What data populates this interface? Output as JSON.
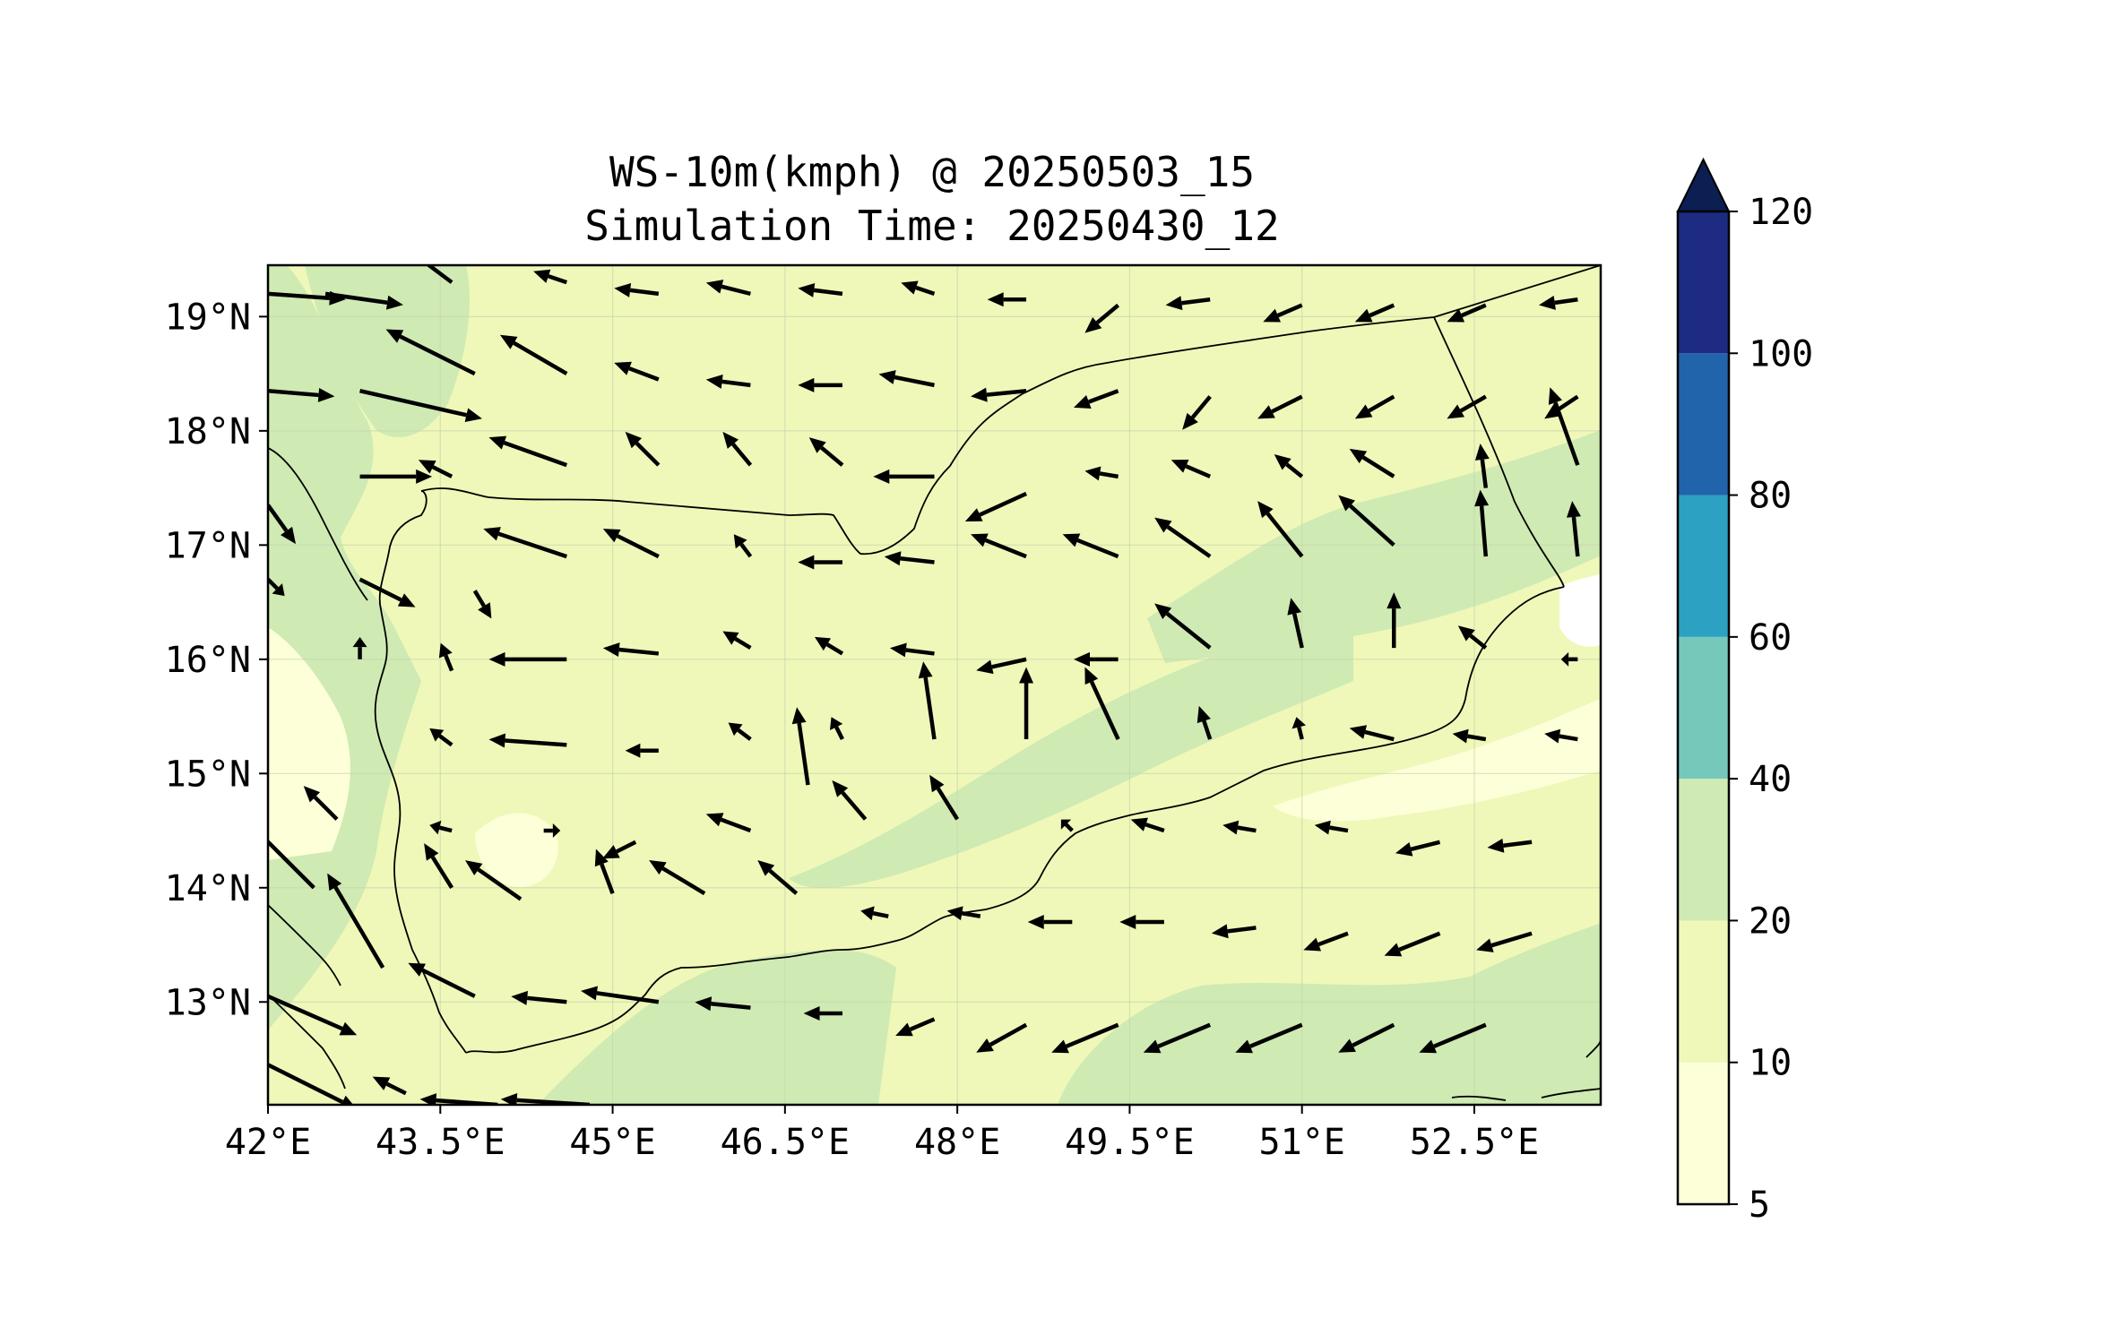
{
  "title": {
    "line1": "WS-10m(kmph) @ 20250503_15",
    "line2": "Simulation Time: 20250430_12"
  },
  "map": {
    "lon_range": [
      42.0,
      53.6
    ],
    "lat_range": [
      12.1,
      19.45
    ],
    "lon_ticks": [
      42,
      43.5,
      45,
      46.5,
      48,
      49.5,
      51,
      52.5
    ],
    "lon_tick_labels": [
      "42°E",
      "43.5°E",
      "45°E",
      "46.5°E",
      "48°E",
      "49.5°E",
      "51°E",
      "52.5°E"
    ],
    "lat_ticks": [
      13,
      14,
      15,
      16,
      17,
      18,
      19
    ],
    "lat_tick_labels": [
      "13°N",
      "14°N",
      "15°N",
      "16°N",
      "17°N",
      "18°N",
      "19°N"
    ],
    "grid": true
  },
  "colorbar": {
    "levels": [
      5,
      10,
      20,
      40,
      60,
      80,
      100,
      120
    ],
    "level_labels": [
      "5",
      "10",
      "20",
      "40",
      "60",
      "80",
      "100",
      "120"
    ],
    "colors": [
      "#fdffd9",
      "#eff8b8",
      "#cfeab3",
      "#76c8bb",
      "#2ca1c2",
      "#2164ab",
      "#1d2c82"
    ],
    "extend_color": "#0c1f52",
    "extend": "max"
  },
  "colors": {
    "land_lowwind": "#eff8b8",
    "land_midwind": "#cfeab3",
    "calm": "#fdffd9",
    "sea_white": "#ffffff",
    "arrow": "#000000"
  },
  "chart_data": {
    "type": "quiver_map",
    "variable": "WS-10m(kmph)",
    "valid_time": "20250503_15",
    "init_time": "20250430_12",
    "vectors": [
      {
        "lon": 42.0,
        "lat": 19.2,
        "u": 14,
        "v": -1
      },
      {
        "lon": 42.5,
        "lat": 19.2,
        "u": 14,
        "v": -2
      },
      {
        "lon": 43.6,
        "lat": 19.3,
        "u": -8,
        "v": 6
      },
      {
        "lon": 44.6,
        "lat": 19.3,
        "u": -6,
        "v": 2
      },
      {
        "lon": 45.4,
        "lat": 19.2,
        "u": -8,
        "v": 1
      },
      {
        "lon": 46.2,
        "lat": 19.2,
        "u": -8,
        "v": 2
      },
      {
        "lon": 47.0,
        "lat": 19.2,
        "u": -8,
        "v": 1
      },
      {
        "lon": 47.8,
        "lat": 19.2,
        "u": -6,
        "v": 2
      },
      {
        "lon": 48.6,
        "lat": 19.15,
        "u": -7,
        "v": 0
      },
      {
        "lon": 49.4,
        "lat": 19.1,
        "u": -6,
        "v": -5
      },
      {
        "lon": 50.2,
        "lat": 19.15,
        "u": -8,
        "v": -1
      },
      {
        "lon": 51.0,
        "lat": 19.1,
        "u": -7,
        "v": -3
      },
      {
        "lon": 51.8,
        "lat": 19.1,
        "u": -7,
        "v": -3
      },
      {
        "lon": 52.6,
        "lat": 19.1,
        "u": -7,
        "v": -3
      },
      {
        "lon": 53.4,
        "lat": 19.15,
        "u": -7,
        "v": -1
      },
      {
        "lon": 42.0,
        "lat": 18.35,
        "u": 12,
        "v": -1
      },
      {
        "lon": 42.8,
        "lat": 18.35,
        "u": 22,
        "v": -5
      },
      {
        "lon": 43.8,
        "lat": 18.5,
        "u": -16,
        "v": 8
      },
      {
        "lon": 44.6,
        "lat": 18.5,
        "u": -12,
        "v": 7
      },
      {
        "lon": 45.4,
        "lat": 18.45,
        "u": -8,
        "v": 3
      },
      {
        "lon": 46.2,
        "lat": 18.4,
        "u": -8,
        "v": 1
      },
      {
        "lon": 47.0,
        "lat": 18.4,
        "u": -8,
        "v": 0
      },
      {
        "lon": 47.8,
        "lat": 18.4,
        "u": -10,
        "v": 2
      },
      {
        "lon": 48.6,
        "lat": 18.35,
        "u": -10,
        "v": -1
      },
      {
        "lon": 49.4,
        "lat": 18.35,
        "u": -8,
        "v": -3
      },
      {
        "lon": 50.2,
        "lat": 18.3,
        "u": -5,
        "v": -6
      },
      {
        "lon": 51.0,
        "lat": 18.3,
        "u": -8,
        "v": -4
      },
      {
        "lon": 51.8,
        "lat": 18.3,
        "u": -7,
        "v": -4
      },
      {
        "lon": 52.6,
        "lat": 18.3,
        "u": -7,
        "v": -4
      },
      {
        "lon": 53.4,
        "lat": 18.3,
        "u": -6,
        "v": -4
      },
      {
        "lon": 42.8,
        "lat": 17.6,
        "u": 13,
        "v": 0
      },
      {
        "lon": 43.6,
        "lat": 17.6,
        "u": -6,
        "v": 3
      },
      {
        "lon": 44.6,
        "lat": 17.7,
        "u": -14,
        "v": 5
      },
      {
        "lon": 45.4,
        "lat": 17.7,
        "u": -6,
        "v": 6
      },
      {
        "lon": 46.2,
        "lat": 17.7,
        "u": -5,
        "v": 6
      },
      {
        "lon": 47.0,
        "lat": 17.7,
        "u": -6,
        "v": 5
      },
      {
        "lon": 47.8,
        "lat": 17.6,
        "u": -11,
        "v": 0
      },
      {
        "lon": 48.6,
        "lat": 17.45,
        "u": -11,
        "v": -5
      },
      {
        "lon": 49.4,
        "lat": 17.6,
        "u": -6,
        "v": 1
      },
      {
        "lon": 50.2,
        "lat": 17.6,
        "u": -7,
        "v": 3
      },
      {
        "lon": 51.0,
        "lat": 17.6,
        "u": -5,
        "v": 4
      },
      {
        "lon": 51.8,
        "lat": 17.6,
        "u": -8,
        "v": 5
      },
      {
        "lon": 52.6,
        "lat": 17.5,
        "u": -1,
        "v": 8
      },
      {
        "lon": 53.4,
        "lat": 17.7,
        "u": -5,
        "v": 14
      },
      {
        "lon": 42.0,
        "lat": 17.35,
        "u": 5,
        "v": -7
      },
      {
        "lon": 42.0,
        "lat": 16.7,
        "u": 3,
        "v": -3
      },
      {
        "lon": 42.8,
        "lat": 16.7,
        "u": 10,
        "v": -5
      },
      {
        "lon": 43.8,
        "lat": 16.6,
        "u": 3,
        "v": -5
      },
      {
        "lon": 44.6,
        "lat": 16.9,
        "u": -15,
        "v": 5
      },
      {
        "lon": 45.4,
        "lat": 16.9,
        "u": -10,
        "v": 5
      },
      {
        "lon": 46.2,
        "lat": 16.9,
        "u": -3,
        "v": 4
      },
      {
        "lon": 47.0,
        "lat": 16.85,
        "u": -8,
        "v": 0
      },
      {
        "lon": 47.8,
        "lat": 16.85,
        "u": -9,
        "v": 1
      },
      {
        "lon": 48.6,
        "lat": 16.9,
        "u": -10,
        "v": 4
      },
      {
        "lon": 49.4,
        "lat": 16.9,
        "u": -10,
        "v": 4
      },
      {
        "lon": 50.2,
        "lat": 16.9,
        "u": -10,
        "v": 7
      },
      {
        "lon": 51.0,
        "lat": 16.9,
        "u": -8,
        "v": 10
      },
      {
        "lon": 51.8,
        "lat": 17.0,
        "u": -10,
        "v": 9
      },
      {
        "lon": 52.6,
        "lat": 16.9,
        "u": -1,
        "v": 12
      },
      {
        "lon": 53.4,
        "lat": 16.9,
        "u": -1,
        "v": 10
      },
      {
        "lon": 42.0,
        "lat": 16.0,
        "u": -2,
        "v": 2
      },
      {
        "lon": 42.8,
        "lat": 16.0,
        "u": 0,
        "v": 4
      },
      {
        "lon": 43.6,
        "lat": 15.9,
        "u": -2,
        "v": 5
      },
      {
        "lon": 44.6,
        "lat": 16.0,
        "u": -14,
        "v": 0
      },
      {
        "lon": 45.4,
        "lat": 16.05,
        "u": -10,
        "v": 1
      },
      {
        "lon": 46.2,
        "lat": 16.1,
        "u": -5,
        "v": 3
      },
      {
        "lon": 47.0,
        "lat": 16.05,
        "u": -5,
        "v": 3
      },
      {
        "lon": 47.8,
        "lat": 16.05,
        "u": -8,
        "v": 1
      },
      {
        "lon": 48.6,
        "lat": 16.0,
        "u": -9,
        "v": -2
      },
      {
        "lon": 49.4,
        "lat": 16.0,
        "u": -8,
        "v": 0
      },
      {
        "lon": 50.2,
        "lat": 16.1,
        "u": -10,
        "v": 8
      },
      {
        "lon": 51.0,
        "lat": 16.1,
        "u": -2,
        "v": 9
      },
      {
        "lon": 51.8,
        "lat": 16.1,
        "u": 0,
        "v": 10
      },
      {
        "lon": 52.6,
        "lat": 16.1,
        "u": -5,
        "v": 4
      },
      {
        "lon": 53.4,
        "lat": 16.0,
        "u": -3,
        "v": 0
      },
      {
        "lon": 43.6,
        "lat": 15.25,
        "u": -4,
        "v": 3
      },
      {
        "lon": 44.6,
        "lat": 15.25,
        "u": -14,
        "v": 1
      },
      {
        "lon": 45.4,
        "lat": 15.2,
        "u": -6,
        "v": 0
      },
      {
        "lon": 46.2,
        "lat": 15.3,
        "u": -4,
        "v": 3
      },
      {
        "lon": 47.0,
        "lat": 15.3,
        "u": -2,
        "v": 4
      },
      {
        "lon": 47.8,
        "lat": 15.3,
        "u": -2,
        "v": 14
      },
      {
        "lon": 48.6,
        "lat": 15.3,
        "u": 0,
        "v": 13
      },
      {
        "lon": 49.4,
        "lat": 15.3,
        "u": -6,
        "v": 13
      },
      {
        "lon": 50.2,
        "lat": 15.3,
        "u": -2,
        "v": 6
      },
      {
        "lon": 51.0,
        "lat": 15.3,
        "u": -1,
        "v": 4
      },
      {
        "lon": 51.8,
        "lat": 15.3,
        "u": -8,
        "v": 2
      },
      {
        "lon": 52.6,
        "lat": 15.3,
        "u": -6,
        "v": 1
      },
      {
        "lon": 53.4,
        "lat": 15.3,
        "u": -6,
        "v": 1
      },
      {
        "lon": 46.7,
        "lat": 14.9,
        "u": -2,
        "v": 14
      },
      {
        "lon": 42.6,
        "lat": 14.6,
        "u": -6,
        "v": 6
      },
      {
        "lon": 43.6,
        "lat": 14.5,
        "u": -4,
        "v": 1
      },
      {
        "lon": 44.4,
        "lat": 14.5,
        "u": 3,
        "v": 0
      },
      {
        "lon": 45.2,
        "lat": 14.4,
        "u": -6,
        "v": -3
      },
      {
        "lon": 46.2,
        "lat": 14.5,
        "u": -8,
        "v": 3
      },
      {
        "lon": 47.2,
        "lat": 14.6,
        "u": -6,
        "v": 7
      },
      {
        "lon": 48.0,
        "lat": 14.6,
        "u": -5,
        "v": 8
      },
      {
        "lon": 49.0,
        "lat": 14.5,
        "u": -2,
        "v": 2
      },
      {
        "lon": 49.8,
        "lat": 14.5,
        "u": -6,
        "v": 2
      },
      {
        "lon": 50.6,
        "lat": 14.5,
        "u": -6,
        "v": 1
      },
      {
        "lon": 51.4,
        "lat": 14.5,
        "u": -6,
        "v": 1
      },
      {
        "lon": 52.2,
        "lat": 14.4,
        "u": -8,
        "v": -2
      },
      {
        "lon": 53.0,
        "lat": 14.4,
        "u": -8,
        "v": -1
      },
      {
        "lon": 42.4,
        "lat": 14.0,
        "u": -14,
        "v": 14
      },
      {
        "lon": 43.6,
        "lat": 14.0,
        "u": -5,
        "v": 8
      },
      {
        "lon": 44.2,
        "lat": 13.9,
        "u": -10,
        "v": 7
      },
      {
        "lon": 45.0,
        "lat": 13.95,
        "u": -3,
        "v": 8
      },
      {
        "lon": 45.8,
        "lat": 13.95,
        "u": -10,
        "v": 6
      },
      {
        "lon": 46.6,
        "lat": 13.95,
        "u": -7,
        "v": 6
      },
      {
        "lon": 47.4,
        "lat": 13.75,
        "u": -5,
        "v": 1
      },
      {
        "lon": 48.2,
        "lat": 13.75,
        "u": -6,
        "v": 1
      },
      {
        "lon": 49.0,
        "lat": 13.7,
        "u": -8,
        "v": 0
      },
      {
        "lon": 49.8,
        "lat": 13.7,
        "u": -8,
        "v": 0
      },
      {
        "lon": 50.6,
        "lat": 13.65,
        "u": -8,
        "v": -1
      },
      {
        "lon": 51.4,
        "lat": 13.6,
        "u": -8,
        "v": -3
      },
      {
        "lon": 52.2,
        "lat": 13.6,
        "u": -10,
        "v": -4
      },
      {
        "lon": 53.0,
        "lat": 13.6,
        "u": -10,
        "v": -3
      },
      {
        "lon": 43.0,
        "lat": 13.3,
        "u": -10,
        "v": 17
      },
      {
        "lon": 42.0,
        "lat": 13.05,
        "u": 16,
        "v": -7
      },
      {
        "lon": 43.8,
        "lat": 13.05,
        "u": -12,
        "v": 6
      },
      {
        "lon": 44.6,
        "lat": 13.0,
        "u": -10,
        "v": 1
      },
      {
        "lon": 45.4,
        "lat": 13.0,
        "u": -14,
        "v": 2
      },
      {
        "lon": 46.2,
        "lat": 12.95,
        "u": -10,
        "v": 1
      },
      {
        "lon": 47.0,
        "lat": 12.9,
        "u": -7,
        "v": 0
      },
      {
        "lon": 47.8,
        "lat": 12.85,
        "u": -7,
        "v": -3
      },
      {
        "lon": 48.6,
        "lat": 12.8,
        "u": -9,
        "v": -5
      },
      {
        "lon": 49.4,
        "lat": 12.8,
        "u": -12,
        "v": -5
      },
      {
        "lon": 50.2,
        "lat": 12.8,
        "u": -12,
        "v": -5
      },
      {
        "lon": 51.0,
        "lat": 12.8,
        "u": -12,
        "v": -5
      },
      {
        "lon": 51.8,
        "lat": 12.8,
        "u": -10,
        "v": -5
      },
      {
        "lon": 52.6,
        "lat": 12.8,
        "u": -12,
        "v": -5
      },
      {
        "lon": 42.0,
        "lat": 12.45,
        "u": 16,
        "v": -8
      },
      {
        "lon": 43.2,
        "lat": 12.2,
        "u": -6,
        "v": 3
      },
      {
        "lon": 44.0,
        "lat": 12.1,
        "u": -14,
        "v": 1
      },
      {
        "lon": 44.8,
        "lat": 12.1,
        "u": -16,
        "v": 1
      }
    ]
  }
}
